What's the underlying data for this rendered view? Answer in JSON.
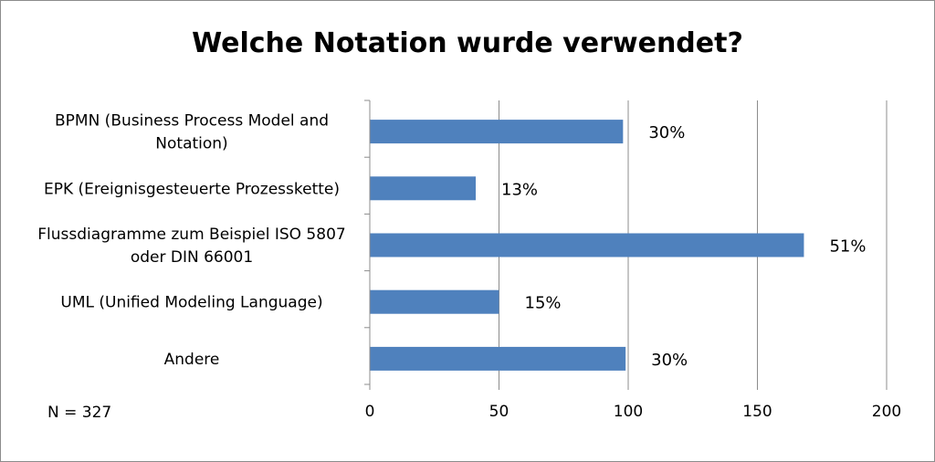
{
  "chart_data": {
    "type": "bar",
    "orientation": "horizontal",
    "title": "Welche Notation wurde verwendet?",
    "xlabel": "",
    "ylabel": "",
    "categories": [
      [
        "BPMN (Business Process Model and",
        "Notation)"
      ],
      [
        "EPK (Ereignisgesteuerte Prozesskette)"
      ],
      [
        "Flussdiagramme zum Beispiel ISO 5807",
        "oder DIN 66001"
      ],
      [
        "UML (Unified Modeling Language)"
      ],
      [
        "Andere"
      ]
    ],
    "values": [
      98,
      41,
      168,
      50,
      99
    ],
    "data_labels": [
      "30%",
      "13%",
      "51%",
      "15%",
      "30%"
    ],
    "xlim": [
      0,
      200
    ],
    "x_ticks": [
      0,
      50,
      100,
      150,
      200
    ],
    "x_tick_labels": [
      "0",
      "50",
      "100",
      "150",
      "200"
    ],
    "grid": true,
    "legend": "none",
    "bar_color": "#4f81bd",
    "note": "N = 327"
  }
}
